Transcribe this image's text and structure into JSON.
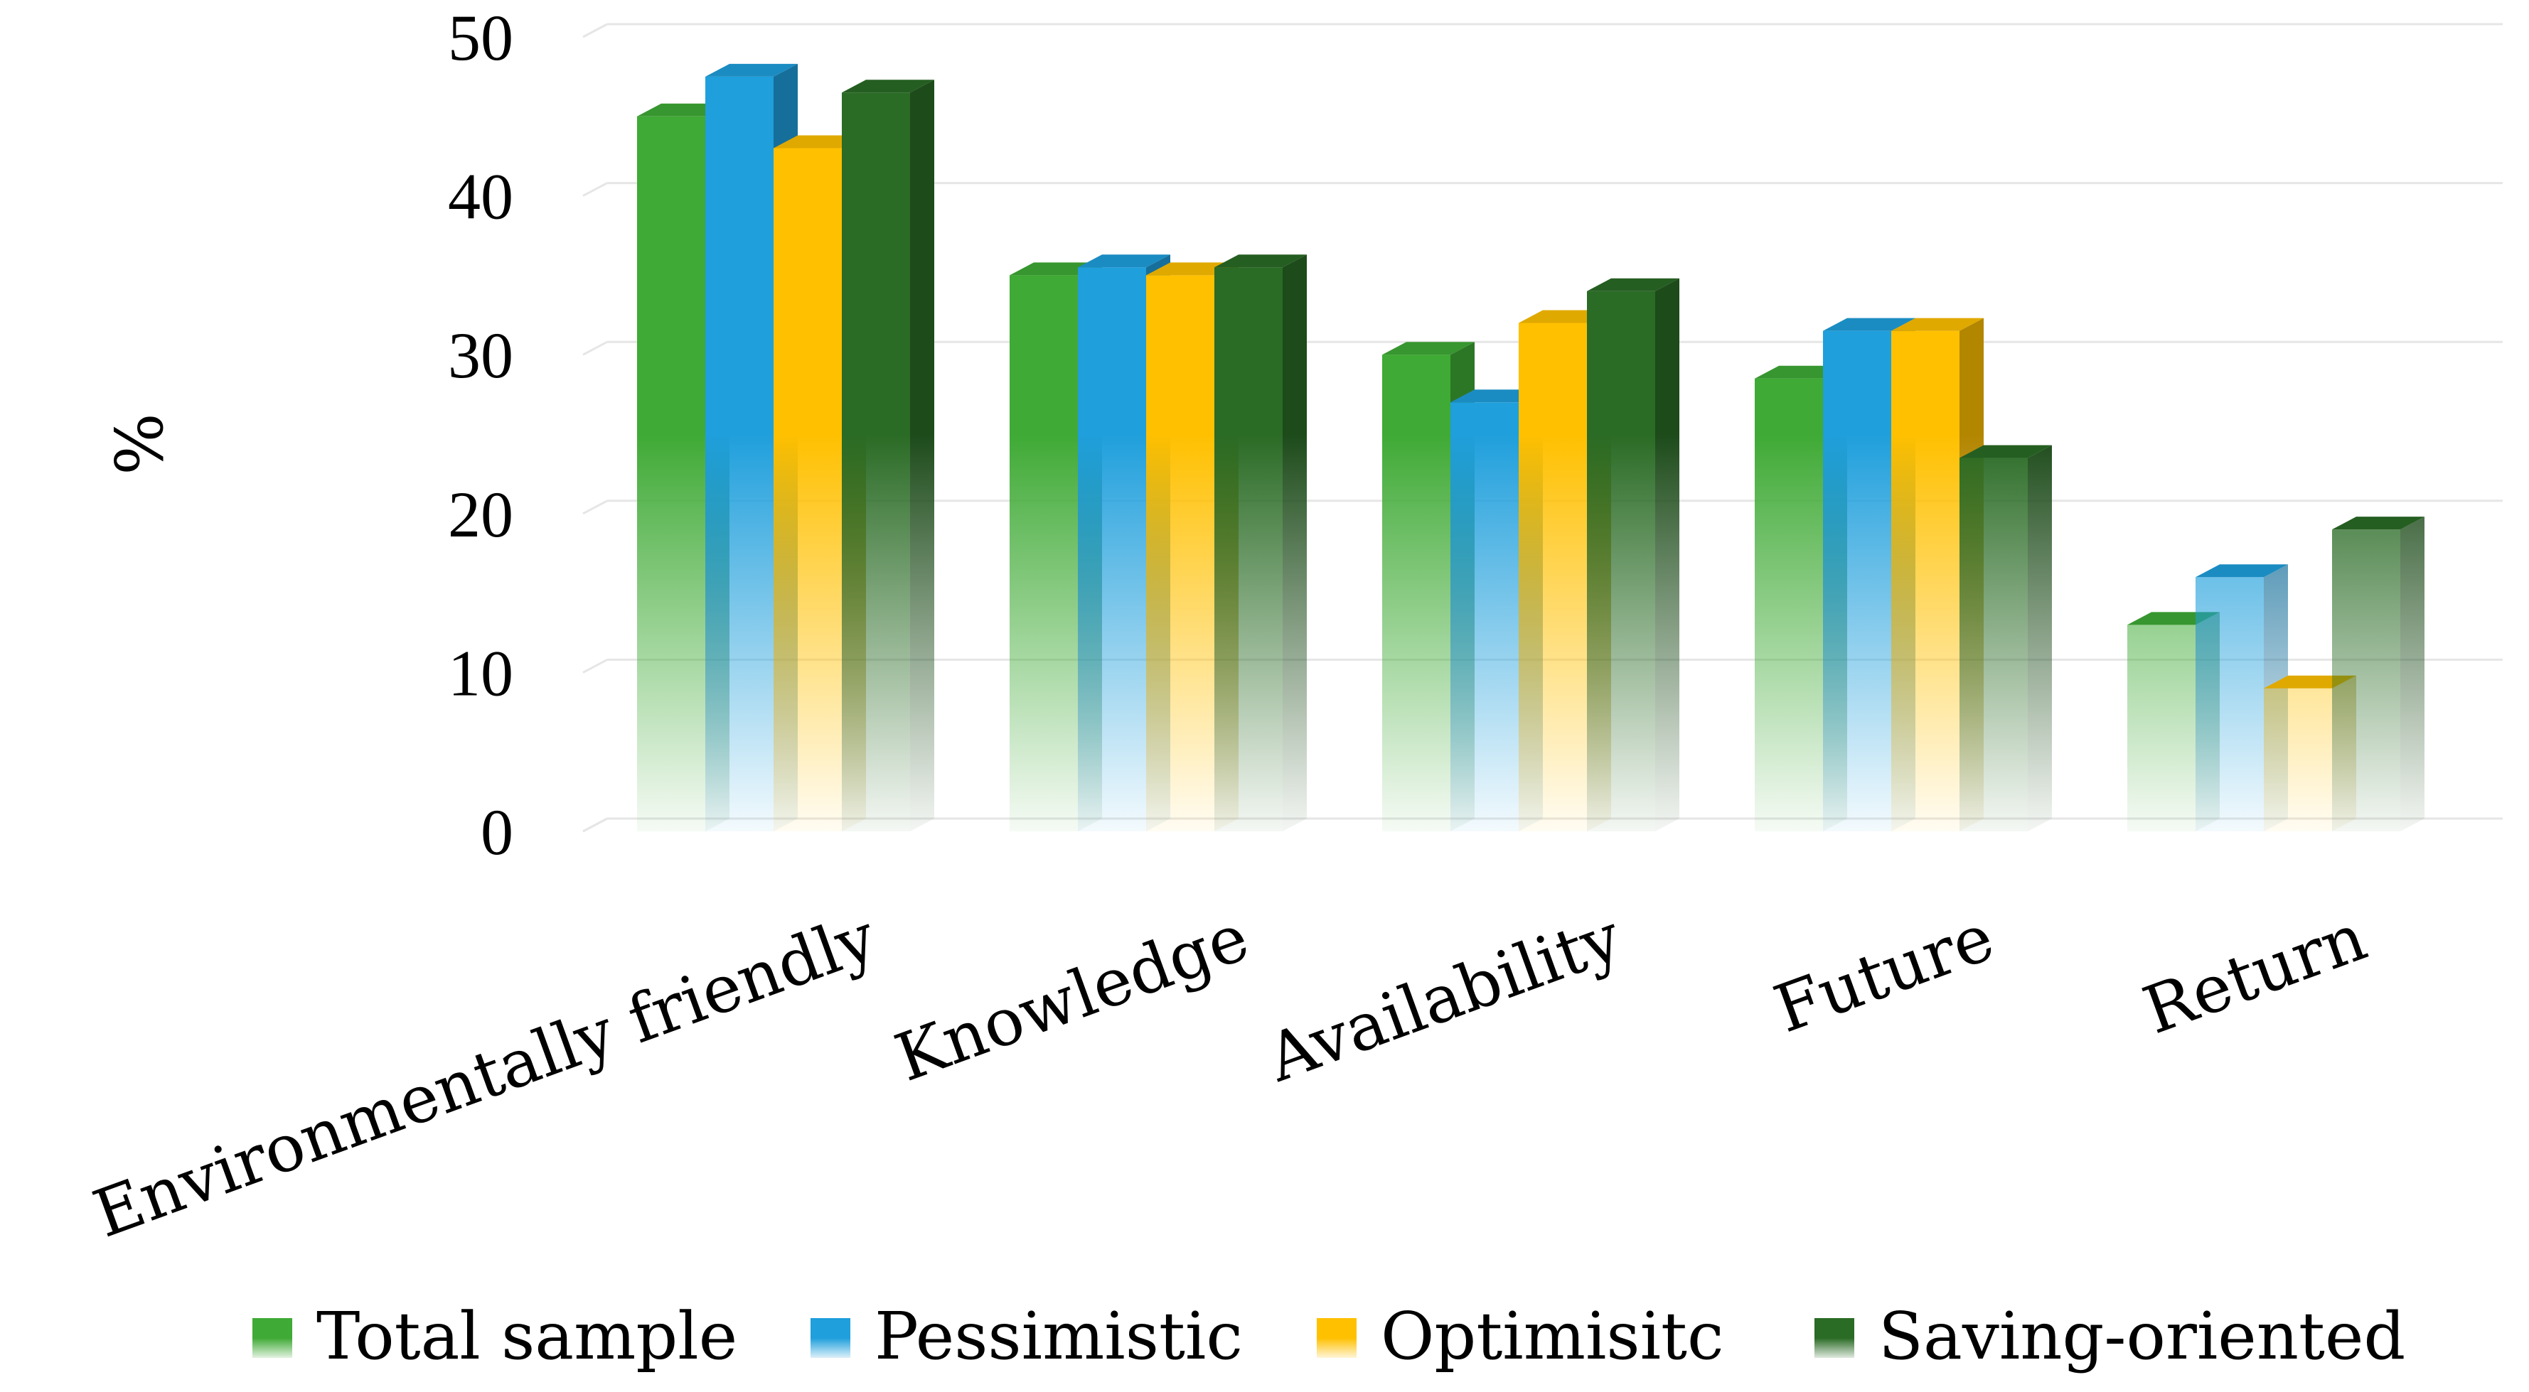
{
  "chart_data": {
    "type": "bar",
    "title": "",
    "xlabel": "",
    "ylabel": "%",
    "ylim": [
      0,
      50
    ],
    "yticks": [
      0,
      10,
      20,
      30,
      40,
      50
    ],
    "grid": true,
    "legend_position": "bottom",
    "categories": [
      "Environmentally friendly",
      "Knowledge",
      "Availability",
      "Future",
      "Return"
    ],
    "series": [
      {
        "name": "Total sample",
        "color": "#3faa35",
        "values": [
          45,
          35,
          30,
          28.5,
          13
        ]
      },
      {
        "name": "Pessimistic",
        "color": "#1f9fdc",
        "values": [
          47.5,
          35.5,
          27,
          31.5,
          16
        ]
      },
      {
        "name": "Optimisitc",
        "color": "#ffc000",
        "values": [
          43,
          35,
          32,
          31.5,
          9
        ]
      },
      {
        "name": "Saving-oriented",
        "color": "#2a6b25",
        "values": [
          46.5,
          35.5,
          34,
          23.5,
          19
        ]
      }
    ]
  }
}
